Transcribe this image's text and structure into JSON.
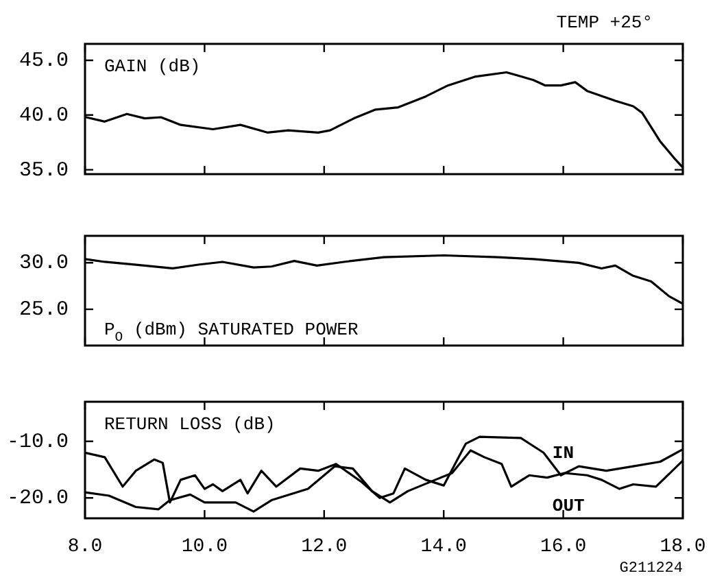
{
  "chart_data": [
    {
      "type": "line",
      "title": "GAIN (dB)",
      "annotations": [
        "TEMP +25°"
      ],
      "tick_labels": "y",
      "grid": false,
      "marker": "none",
      "line_style": "solid",
      "legend": false,
      "xlim": [
        8,
        18
      ],
      "xticks": [
        {
          "value": 8,
          "label": null
        },
        {
          "value": 10,
          "label": null
        },
        {
          "value": 12,
          "label": null
        },
        {
          "value": 14,
          "label": null
        },
        {
          "value": 16,
          "label": null
        },
        {
          "value": 18,
          "label": null
        }
      ],
      "ylim": [
        34.6,
        46.5
      ],
      "yticks": [
        {
          "value": 35,
          "label": "35.0"
        },
        {
          "value": 40,
          "label": "40.0"
        },
        {
          "value": 45,
          "label": "45.0"
        }
      ],
      "series": [
        {
          "color": "#000000",
          "x": [
            8.02,
            8.33,
            8.7,
            9.0,
            9.27,
            9.6,
            10.14,
            10.6,
            11.05,
            11.4,
            11.9,
            12.1,
            12.5,
            12.86,
            13.24,
            13.7,
            14.07,
            14.52,
            15.05,
            15.5,
            15.7,
            15.96,
            16.2,
            16.4,
            16.87,
            17.17,
            17.32,
            17.62,
            17.85,
            18.0
          ],
          "values": [
            39.8,
            39.4,
            40.1,
            39.7,
            39.8,
            39.1,
            38.7,
            39.1,
            38.4,
            38.6,
            38.4,
            38.6,
            39.7,
            40.5,
            40.7,
            41.7,
            42.7,
            43.5,
            43.9,
            43.2,
            42.7,
            42.7,
            43.0,
            42.2,
            41.3,
            40.8,
            40.2,
            37.6,
            36.1,
            35.2
          ]
        }
      ]
    },
    {
      "type": "line",
      "title": "P$_{O}$ (dBm) SATURATED POWER",
      "tick_labels": "y",
      "grid": false,
      "marker": "none",
      "line_style": "solid",
      "legend": false,
      "xlim": [
        8,
        18
      ],
      "xticks": [
        {
          "value": 8,
          "label": null
        },
        {
          "value": 10,
          "label": null
        },
        {
          "value": 12,
          "label": null
        },
        {
          "value": 14,
          "label": null
        },
        {
          "value": 16,
          "label": null
        },
        {
          "value": 18,
          "label": null
        }
      ],
      "ylim": [
        21.1,
        32.9
      ],
      "yticks": [
        {
          "value": 25,
          "label": "25.0"
        },
        {
          "value": 30,
          "label": "30.0"
        }
      ],
      "series": [
        {
          "color": "#000000",
          "x": [
            8.0,
            8.33,
            8.85,
            9.46,
            9.9,
            10.3,
            10.82,
            11.12,
            11.5,
            11.88,
            12.33,
            13.0,
            14.0,
            14.9,
            15.5,
            16.26,
            16.64,
            16.87,
            17.17,
            17.47,
            17.77,
            18.0
          ],
          "values": [
            30.4,
            30.1,
            29.8,
            29.4,
            29.8,
            30.1,
            29.5,
            29.6,
            30.2,
            29.7,
            30.1,
            30.6,
            30.8,
            30.6,
            30.4,
            30.0,
            29.4,
            29.7,
            28.6,
            28.0,
            26.4,
            25.6
          ]
        }
      ]
    },
    {
      "type": "line",
      "title": "RETURN LOSS (dB)",
      "annotations": [
        "G211224"
      ],
      "grid": false,
      "marker": "none",
      "line_style": "solid",
      "legend": false,
      "xlim": [
        8,
        18
      ],
      "xticks": [
        {
          "value": 8,
          "label": "8.0"
        },
        {
          "value": 10,
          "label": "10.0"
        },
        {
          "value": 12,
          "label": "12.0"
        },
        {
          "value": 14,
          "label": "14.0"
        },
        {
          "value": 16,
          "label": "16.0"
        },
        {
          "value": 18,
          "label": "18.0"
        }
      ],
      "ylim": [
        -23.6,
        -3.0
      ],
      "yticks": [
        {
          "value": -20,
          "label": "-20.0"
        },
        {
          "value": -10,
          "label": "-10.0"
        }
      ],
      "series": [
        {
          "name": "IN",
          "color": "#000000",
          "x": [
            8.0,
            8.33,
            8.63,
            8.85,
            9.16,
            9.3,
            9.42,
            9.6,
            9.84,
            10.0,
            10.14,
            10.3,
            10.6,
            10.72,
            10.95,
            11.2,
            11.6,
            11.9,
            12.2,
            12.63,
            12.93,
            13.16,
            13.35,
            13.7,
            14.0,
            14.37,
            14.6,
            15.29,
            15.67,
            15.96,
            16.26,
            16.72,
            17.17,
            17.62,
            18.0
          ],
          "values": [
            -12.0,
            -12.8,
            -18.0,
            -15.2,
            -13.2,
            -13.8,
            -20.8,
            -16.8,
            -16.0,
            -18.4,
            -17.6,
            -18.8,
            -16.8,
            -19.2,
            -15.2,
            -18.0,
            -14.8,
            -15.2,
            -14.0,
            -17.2,
            -20.0,
            -19.2,
            -14.8,
            -16.8,
            -17.8,
            -10.4,
            -9.2,
            -9.4,
            -12.0,
            -16.0,
            -14.4,
            -15.2,
            -14.4,
            -13.6,
            -11.4
          ]
        },
        {
          "name": "OUT",
          "color": "#000000",
          "x": [
            8.0,
            8.4,
            8.85,
            9.23,
            9.42,
            9.76,
            10.0,
            10.52,
            10.82,
            11.12,
            11.73,
            12.18,
            12.48,
            12.8,
            13.1,
            13.4,
            13.86,
            14.14,
            14.45,
            14.68,
            14.97,
            15.13,
            15.43,
            15.73,
            16.02,
            16.4,
            16.64,
            16.94,
            17.17,
            17.55,
            18.0
          ],
          "values": [
            -19.0,
            -19.6,
            -21.6,
            -22.0,
            -20.4,
            -19.4,
            -20.8,
            -20.8,
            -22.4,
            -20.4,
            -18.4,
            -14.4,
            -14.8,
            -18.8,
            -20.8,
            -18.8,
            -16.8,
            -15.6,
            -11.6,
            -12.8,
            -14.0,
            -18.0,
            -16.0,
            -16.4,
            -15.6,
            -16.0,
            -16.8,
            -18.4,
            -17.6,
            -18.0,
            -13.4
          ]
        }
      ]
    }
  ]
}
